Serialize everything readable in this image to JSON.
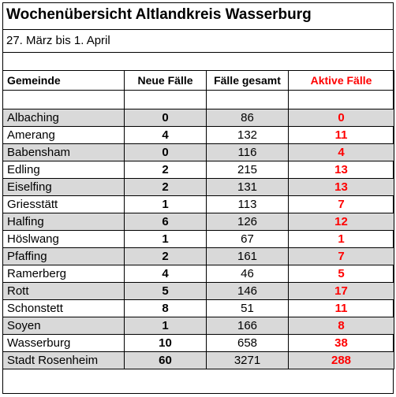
{
  "title": "Wochenübersicht Altlandkreis Wasserburg",
  "subtitle": "27. März bis 1. April",
  "headers": {
    "gemeinde": "Gemeinde",
    "neue": "Neue Fälle",
    "gesamt": "Fälle gesamt",
    "aktive": "Aktive Fälle"
  },
  "colors": {
    "shade": "#d9d9d9",
    "aktive": "#ff0000"
  },
  "rows": [
    {
      "name": "Albaching",
      "neue": "0",
      "gesamt": "86",
      "aktive": "0"
    },
    {
      "name": "Amerang",
      "neue": "4",
      "gesamt": "132",
      "aktive": "11"
    },
    {
      "name": "Babensham",
      "neue": "0",
      "gesamt": "116",
      "aktive": "4"
    },
    {
      "name": "Edling",
      "neue": "2",
      "gesamt": "215",
      "aktive": "13"
    },
    {
      "name": "Eiselfing",
      "neue": "2",
      "gesamt": "131",
      "aktive": "13"
    },
    {
      "name": "Griesstätt",
      "neue": "1",
      "gesamt": "113",
      "aktive": "7"
    },
    {
      "name": "Halfing",
      "neue": "6",
      "gesamt": "126",
      "aktive": "12"
    },
    {
      "name": "Höslwang",
      "neue": "1",
      "gesamt": "67",
      "aktive": "1"
    },
    {
      "name": "Pfaffing",
      "neue": "2",
      "gesamt": "161",
      "aktive": "7"
    },
    {
      "name": "Ramerberg",
      "neue": "4",
      "gesamt": "46",
      "aktive": "5"
    },
    {
      "name": "Rott",
      "neue": "5",
      "gesamt": "146",
      "aktive": "17"
    },
    {
      "name": "Schonstett",
      "neue": "8",
      "gesamt": "51",
      "aktive": "11"
    },
    {
      "name": "Soyen",
      "neue": "1",
      "gesamt": "166",
      "aktive": "8"
    },
    {
      "name": "Wasserburg",
      "neue": "10",
      "gesamt": "658",
      "aktive": "38"
    },
    {
      "name": "Stadt Rosenheim",
      "neue": "60",
      "gesamt": "3271",
      "aktive": "288"
    }
  ]
}
